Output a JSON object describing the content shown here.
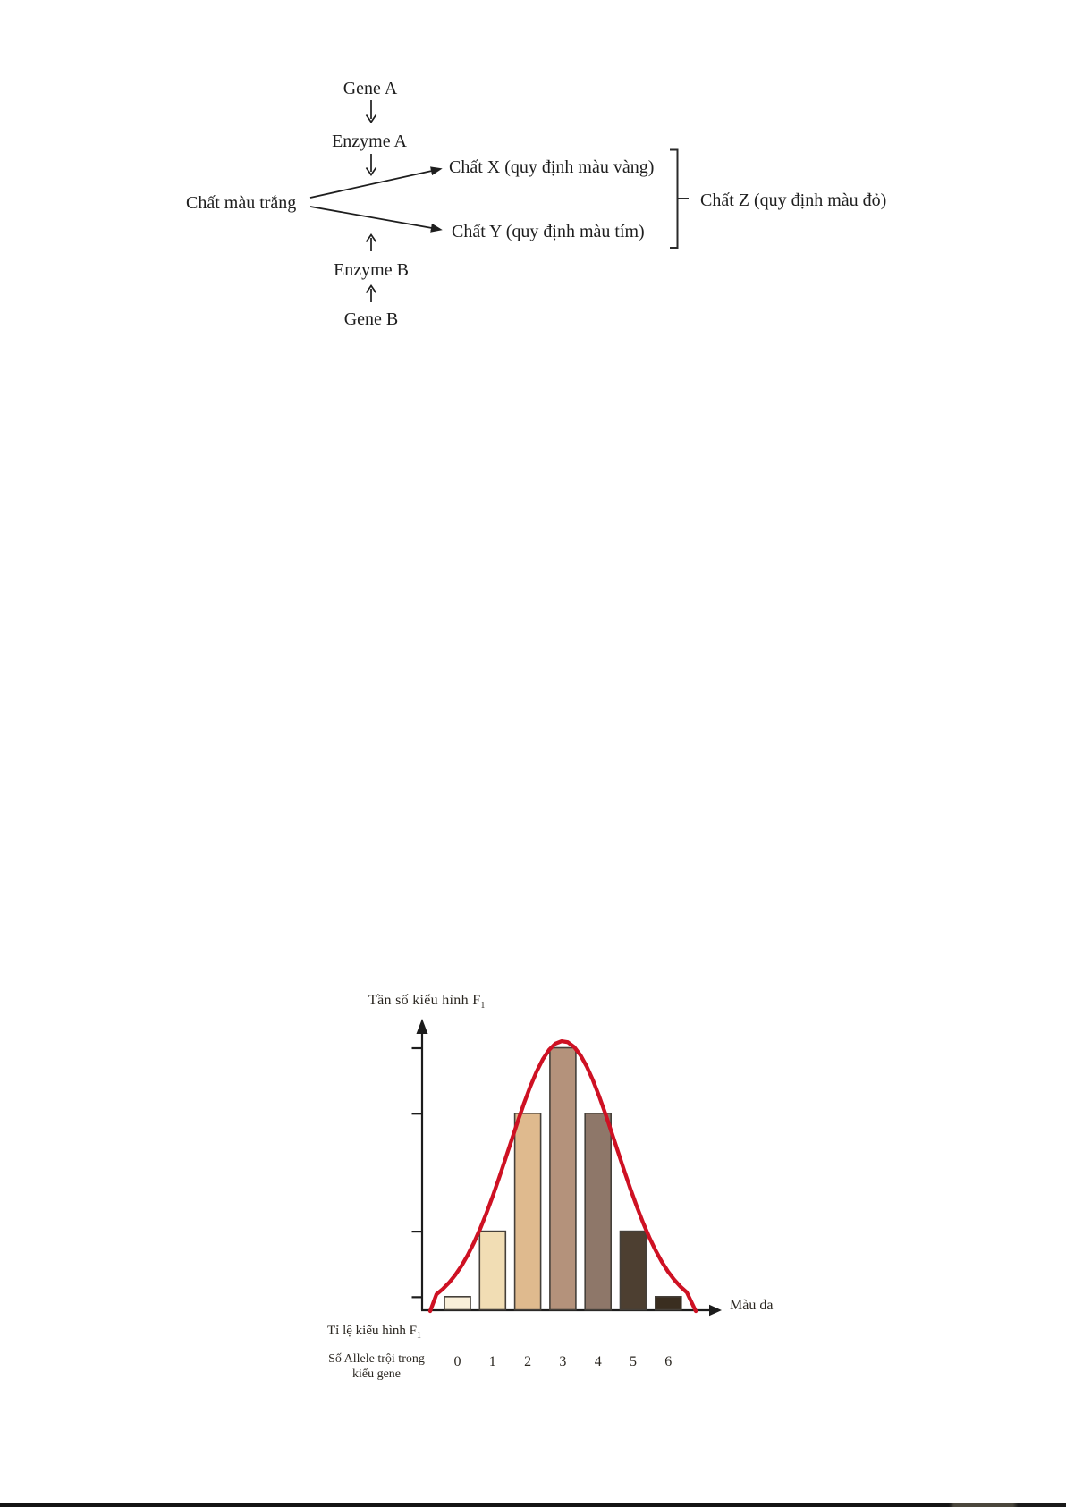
{
  "pathway_diagram": {
    "gene_a": "Gene A",
    "enzyme_a": "Enzyme A",
    "substrate": "Chất màu trắng",
    "product_x": "Chất X (quy định màu vàng)",
    "product_y": "Chất Y (quy định màu tím)",
    "product_z": "Chất Z (quy định màu đỏ)",
    "enzyme_b": "Enzyme B",
    "gene_b": "Gene B"
  },
  "chart_data": {
    "type": "bar",
    "title": "",
    "y_axis_label": "Tần số kiểu hình F",
    "y_axis_label_sub": "1",
    "x_axis_label": "Màu da",
    "x_row1_label": "Tỉ lệ kiểu hình F",
    "x_row1_label_sub": "1",
    "x_row2_label_line1": "Số Allele trội trong",
    "x_row2_label_line2": "kiểu gene",
    "categories": [
      "0",
      "1",
      "2",
      "3",
      "4",
      "5",
      "6"
    ],
    "values": [
      1,
      6,
      15,
      20,
      15,
      6,
      1
    ],
    "ylim": [
      0,
      20
    ],
    "y_tick_values": [
      1,
      6,
      15,
      20
    ],
    "grid": false,
    "legend": false,
    "bar_colors": [
      "#f9efd9",
      "#f1ddb4",
      "#dfba8e",
      "#b4927b",
      "#8e7769",
      "#4d3f31",
      "#3a2e20"
    ],
    "bar_border_color": "#45403a",
    "curve": {
      "shape": "normal-bell",
      "color": "#ce1123"
    },
    "axis_color": "#1c1c1c"
  }
}
